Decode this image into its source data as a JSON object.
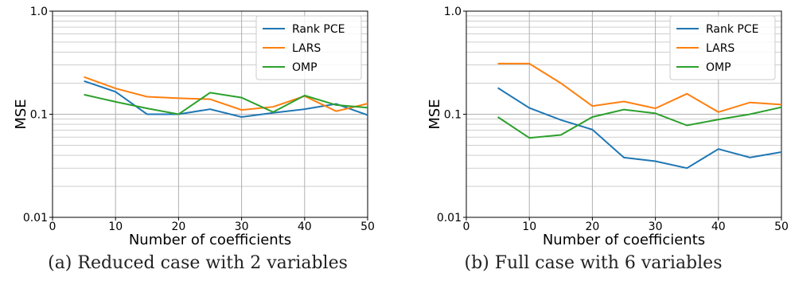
{
  "colors": {
    "rank_pce": "#1f77b4",
    "lars": "#ff7f0e",
    "omp": "#2ca02c",
    "grid": "#b0b0b0"
  },
  "captions": [
    "(a) Reduced case with 2 variables",
    "(b) Full case with 6 variables"
  ],
  "chart_data": [
    {
      "type": "line",
      "xlabel": "Number of coefficients",
      "ylabel": "MSE",
      "yscale": "log",
      "xlim": [
        0,
        50
      ],
      "ylim": [
        0.01,
        1.0
      ],
      "xticks": [
        0,
        10,
        20,
        30,
        40,
        50
      ],
      "yticks": [
        0.01,
        0.1,
        1.0
      ],
      "ytick_labels": [
        "0.01",
        "0.1",
        "1.0"
      ],
      "grid": true,
      "legend_position": "top-right",
      "x": [
        5,
        10,
        15,
        20,
        25,
        30,
        35,
        40,
        45,
        50
      ],
      "series": [
        {
          "name": "Rank PCE",
          "color_key": "rank_pce",
          "values": [
            0.21,
            0.165,
            0.1,
            0.1,
            0.112,
            0.094,
            0.103,
            0.112,
            0.126,
            0.098
          ]
        },
        {
          "name": "LARS",
          "color_key": "lars",
          "values": [
            0.23,
            0.178,
            0.148,
            0.143,
            0.14,
            0.11,
            0.118,
            0.15,
            0.107,
            0.127
          ]
        },
        {
          "name": "OMP",
          "color_key": "omp",
          "values": [
            0.155,
            0.132,
            0.114,
            0.1,
            0.162,
            0.145,
            0.105,
            0.152,
            0.123,
            0.116
          ]
        }
      ]
    },
    {
      "type": "line",
      "xlabel": "Number of coefficients",
      "ylabel": "MSE",
      "yscale": "log",
      "xlim": [
        0,
        50
      ],
      "ylim": [
        0.01,
        1.0
      ],
      "xticks": [
        0,
        10,
        20,
        30,
        40,
        50
      ],
      "yticks": [
        0.01,
        0.1,
        1.0
      ],
      "ytick_labels": [
        "0.01",
        "0.1",
        "1.0"
      ],
      "grid": true,
      "legend_position": "top-right",
      "x": [
        5,
        10,
        15,
        20,
        25,
        30,
        35,
        40,
        45,
        50
      ],
      "series": [
        {
          "name": "Rank PCE",
          "color_key": "rank_pce",
          "values": [
            0.18,
            0.115,
            0.088,
            0.071,
            0.038,
            0.035,
            0.03,
            0.046,
            0.038,
            0.043
          ]
        },
        {
          "name": "LARS",
          "color_key": "lars",
          "values": [
            0.31,
            0.31,
            0.2,
            0.12,
            0.133,
            0.114,
            0.158,
            0.105,
            0.13,
            0.124
          ]
        },
        {
          "name": "OMP",
          "color_key": "omp",
          "values": [
            0.094,
            0.059,
            0.063,
            0.094,
            0.111,
            0.102,
            0.078,
            0.089,
            0.1,
            0.117
          ]
        }
      ]
    }
  ]
}
